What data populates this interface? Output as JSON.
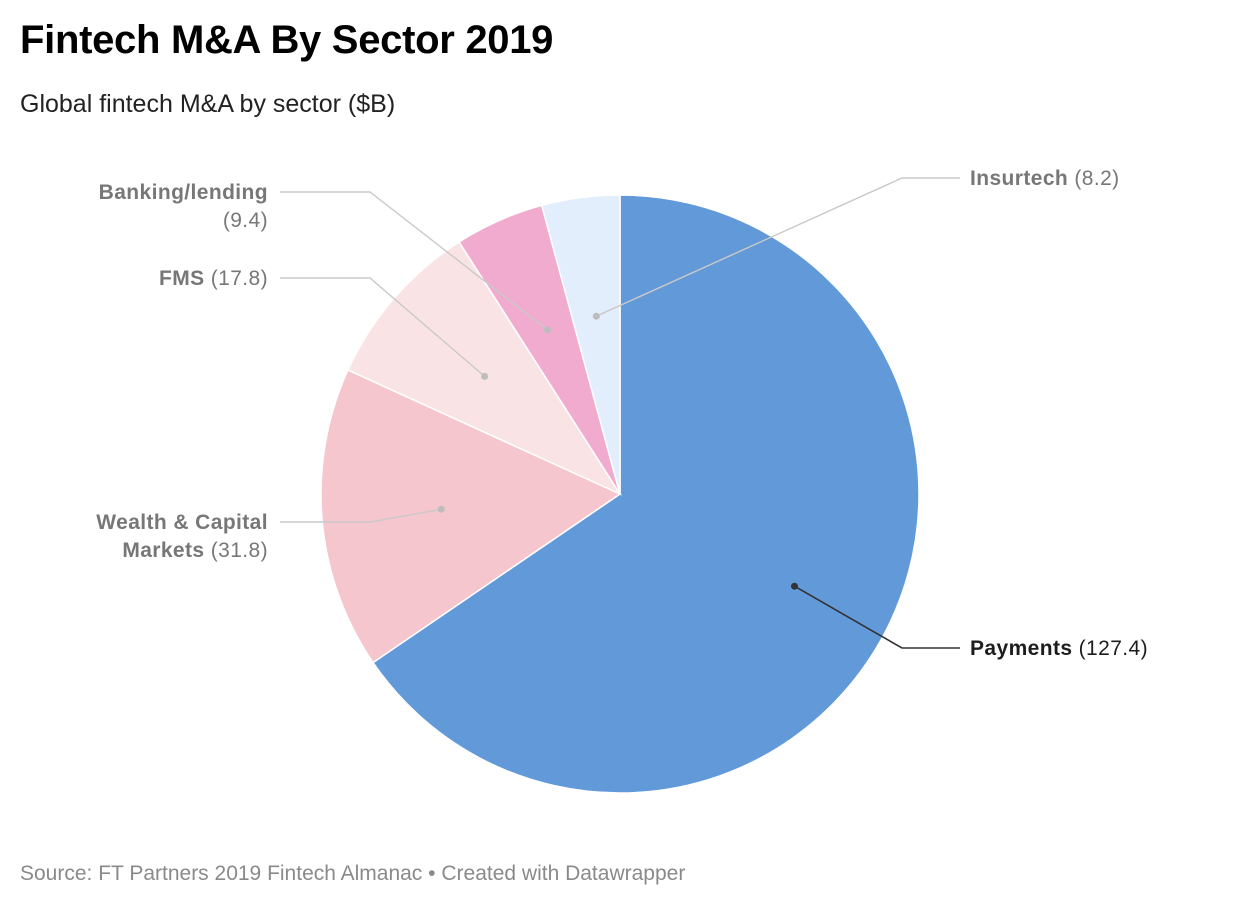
{
  "chart_data": {
    "type": "pie",
    "title": "Fintech M&A By Sector 2019",
    "subtitle": "Global fintech M&A by sector ($B)",
    "slices": [
      {
        "name": "Payments",
        "value_label": "(127.4)",
        "value": 127.4,
        "color": "#6199d9"
      },
      {
        "name": "Wealth & Capital",
        "name_line2": "Markets",
        "value_label": "(31.8)",
        "value": 31.8,
        "color": "#f5c6ce"
      },
      {
        "name": "FMS",
        "value_label": "(17.8)",
        "value": 17.8,
        "color": "#fae3e4"
      },
      {
        "name": "Banking/lending",
        "value_label": "(9.4)",
        "value": 9.4,
        "color": "#f1abcf"
      },
      {
        "name": "Insurtech",
        "value_label": "(8.2)",
        "value": 8.2,
        "color": "#e2eefb"
      }
    ]
  },
  "footer": {
    "source": "Source: FT Partners 2019 Fintech Almanac",
    "separator": "•",
    "credit": "Created with Datawrapper"
  },
  "colors": {
    "label_dark": "#1d1d1d",
    "label_muted": "#777777",
    "leader_dark": "#333333",
    "leader_muted": "#c9c9c9",
    "slice_border": "#ffffff"
  }
}
